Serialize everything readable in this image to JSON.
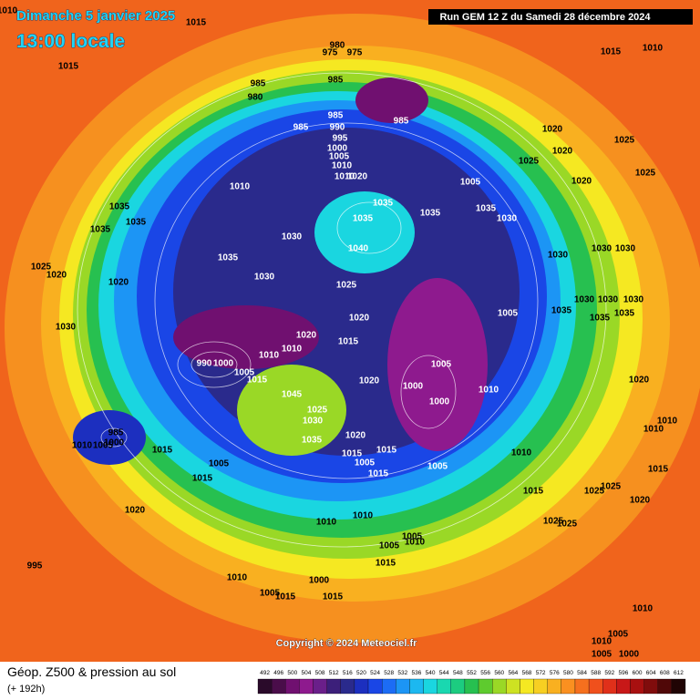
{
  "header": {
    "date": "Dimanche 5 janvier 2025",
    "time": "13:00 locale",
    "run": "Run GEM 12 Z du Samedi 28 décembre 2024"
  },
  "map": {
    "pressure_labels": [
      1010,
      1015,
      1015,
      980,
      975,
      975,
      985,
      985,
      980,
      985,
      985,
      985,
      990,
      995,
      1000,
      1005,
      1010,
      1010,
      1020,
      1010,
      1005,
      1010,
      1015,
      1020,
      1020,
      1025,
      1025,
      1025,
      1020,
      1035,
      1035,
      1035,
      1030,
      1035,
      1040,
      1030,
      1035,
      1030,
      1025,
      1035,
      1035,
      1035,
      1025,
      1020,
      1020,
      1030,
      1030,
      1030,
      1030,
      1030,
      1030,
      1030,
      1035,
      1035,
      1035,
      1005,
      1020,
      1020,
      1015,
      1010,
      1010,
      990,
      1000,
      1005,
      1005,
      1000,
      1000,
      1010,
      1020,
      1015,
      1045,
      1025,
      1030,
      1035,
      1020,
      1015,
      1015,
      1005,
      1015,
      1005,
      1010,
      1015,
      1020,
      1010,
      1010,
      1015,
      1020,
      1025,
      1025,
      1025,
      1025,
      985,
      1010,
      1005,
      1000,
      1015,
      1005,
      1015,
      1020,
      1010,
      1010,
      1005,
      1005,
      1010,
      1015,
      995,
      1010,
      1000,
      1005,
      1015,
      1015,
      1010,
      1005,
      1010,
      1005,
      1000
    ]
  },
  "footer": {
    "title": "Géop. Z500 & pression au sol",
    "lead": "(+ 192h)",
    "copyright": "Copyright © 2024 Meteociel.fr"
  },
  "scale": {
    "values": [
      492,
      496,
      500,
      504,
      508,
      512,
      516,
      520,
      524,
      528,
      532,
      536,
      540,
      544,
      548,
      552,
      556,
      560,
      564,
      568,
      572,
      576,
      580,
      584,
      588,
      592,
      596,
      600,
      604,
      608,
      612
    ],
    "colors": [
      "#2a0a2a",
      "#4a0d4a",
      "#701070",
      "#8e1a8e",
      "#6a1f8a",
      "#3c1f7a",
      "#2a2a8c",
      "#1c2fbf",
      "#1a46e6",
      "#1c6cf5",
      "#1c95f5",
      "#1cb8f0",
      "#1ad6e0",
      "#19d8b0",
      "#1ccc80",
      "#27c050",
      "#5ecb2e",
      "#9ad826",
      "#cde222",
      "#f5e822",
      "#f7cf22",
      "#f9b020",
      "#fa9020",
      "#f6701e",
      "#f0501c",
      "#e0301a",
      "#c81818",
      "#a81010",
      "#800c0c",
      "#500808",
      "#200404"
    ]
  }
}
